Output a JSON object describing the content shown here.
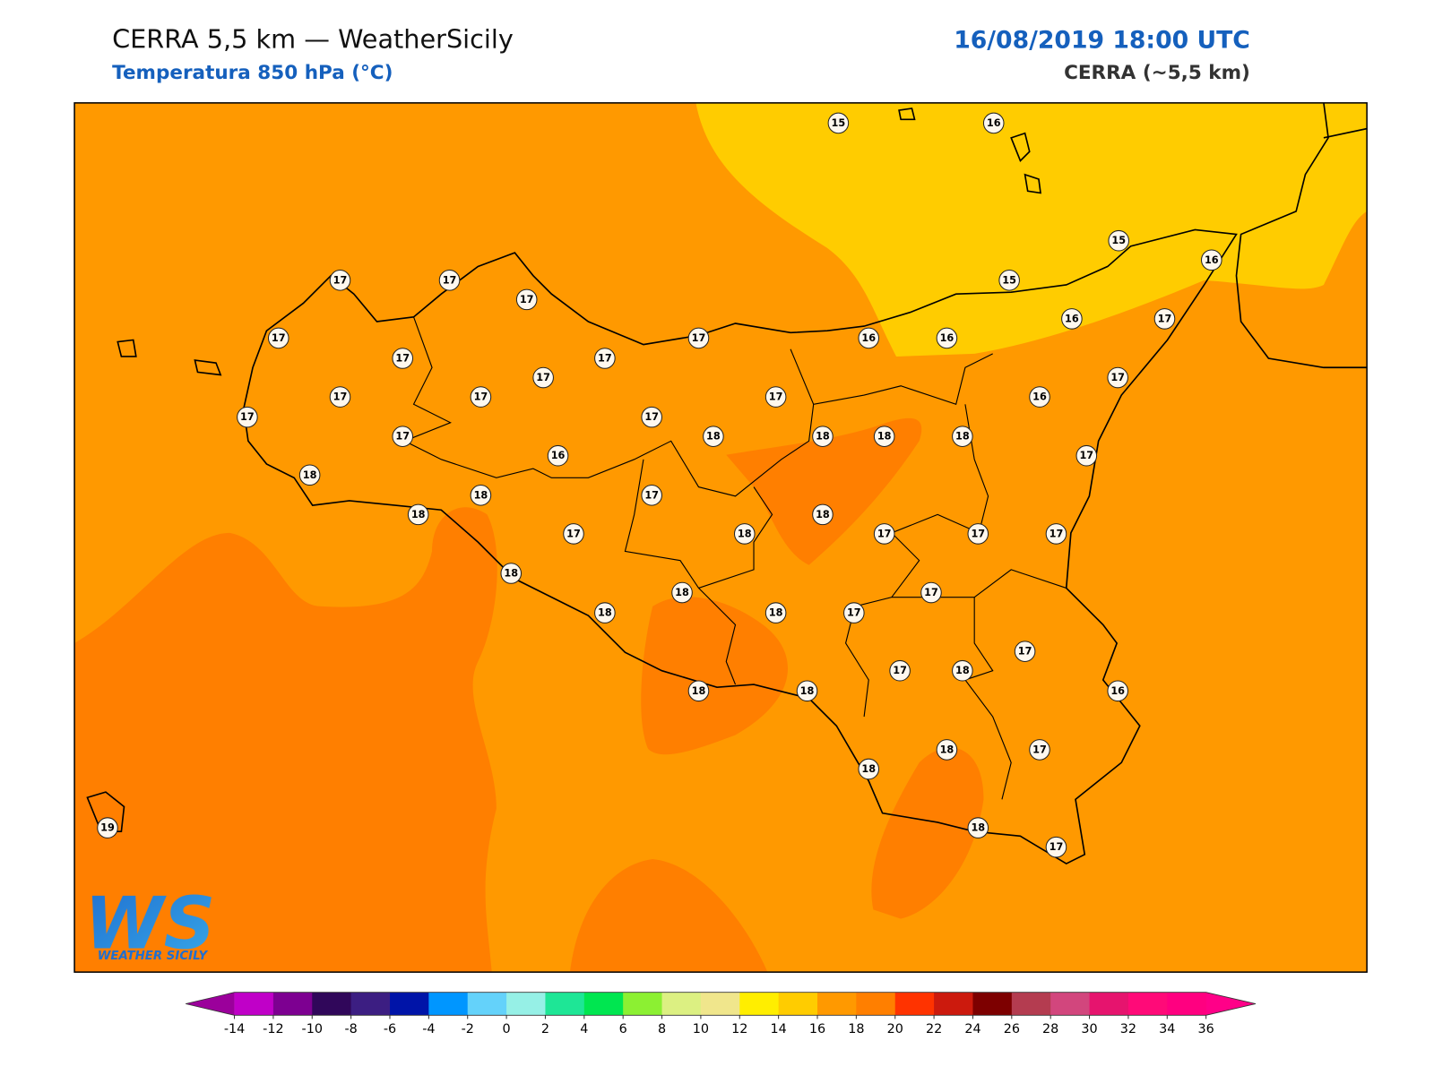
{
  "header": {
    "title": "CERRA 5,5 km — WeatherSicily",
    "subtitle": "Temperatura 850 hPa (°C)",
    "date": "16/08/2019 18:00 UTC",
    "model": "CERRA (~5,5 km)"
  },
  "stations": {
    "values": [
      15,
      16,
      15,
      16,
      15,
      17,
      17,
      17,
      17,
      17,
      16,
      16,
      16,
      17,
      17,
      17,
      17,
      17,
      17,
      17,
      17,
      16,
      17,
      17,
      17,
      18,
      18,
      18,
      18,
      16,
      17,
      18,
      18,
      17,
      18,
      18,
      17,
      18,
      17,
      17,
      17,
      18,
      17,
      18,
      18,
      18,
      17,
      17,
      17,
      18,
      18,
      18,
      16,
      18,
      17,
      18,
      18,
      17,
      19
    ]
  },
  "colorbar": {
    "ticks": [
      -14,
      -12,
      -10,
      -8,
      -6,
      -4,
      -2,
      0,
      2,
      4,
      6,
      8,
      10,
      12,
      14,
      16,
      18,
      20,
      22,
      24,
      26,
      28,
      30,
      32,
      34,
      36
    ],
    "colors": [
      "#c000c8",
      "#7d0091",
      "#30075a",
      "#3c1e82",
      "#0014a8",
      "#0096ff",
      "#64d2fa",
      "#96f0e6",
      "#1ee696",
      "#00e650",
      "#8cf032",
      "#dcf082",
      "#f0e68c",
      "#ffee00",
      "#ffcc00",
      "#ff9900",
      "#ff7f00",
      "#ff3300",
      "#cc1a0d",
      "#7d0000",
      "#b43c50",
      "#d2467d",
      "#e6146e",
      "#ff0a78",
      "#ff0080"
    ],
    "under": "#9b009b",
    "over": "#ff0088"
  },
  "logo": {
    "mark": "WS",
    "name": "WEATHER SICILY"
  }
}
